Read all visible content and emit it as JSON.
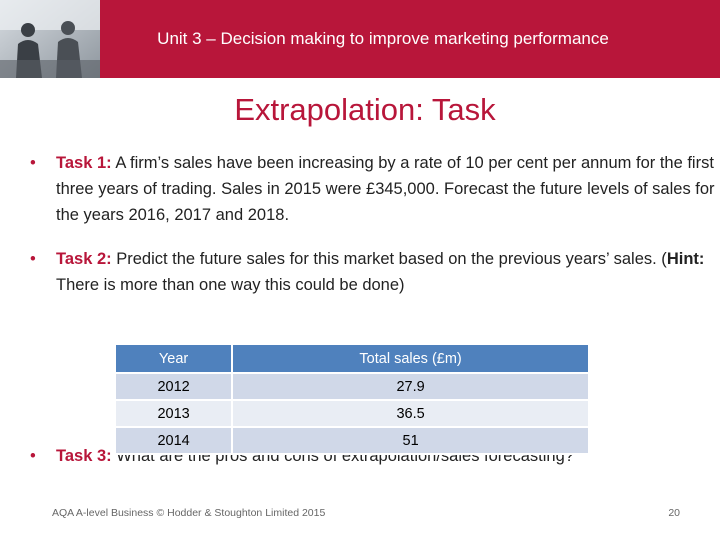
{
  "header": {
    "title": "Unit 3 – Decision making to improve marketing performance"
  },
  "title": "Extrapolation: Task",
  "tasks": [
    {
      "label": "Task 1:",
      "text": "A firm’s sales have been increasing by a rate of 10 per cent per annum for the first three years of trading. Sales in 2015 were £345,000. Forecast the future levels of sales for the years 2016, 2017 and 2018."
    },
    {
      "label": "Task 2:",
      "text": "Predict the future sales for this market based on the previous years’ sales. (",
      "hint_label": "Hint:",
      "hint_text": "There is more than one way this could be done)"
    },
    {
      "label": "Task 3:",
      "text": "What are the pros and cons of extrapolation/sales forecasting?"
    }
  ],
  "table": {
    "headers": [
      "Year",
      "Total sales (£m)"
    ],
    "rows": [
      [
        2012,
        27.9
      ],
      [
        2013,
        36.5
      ],
      [
        2014,
        51
      ]
    ]
  },
  "footer": {
    "credit": "AQA A-level Business © Hodder & Stoughton Limited 2015",
    "page": 20
  }
}
